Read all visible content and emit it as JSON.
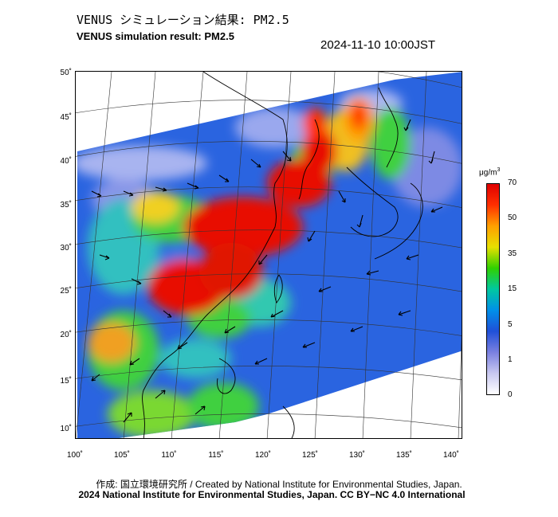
{
  "title_jp": "VENUS シミュレーション結果: PM2.5",
  "title_en": "VENUS simulation result: PM2.5",
  "datetime": "2024-11-10 10:00JST",
  "lat_ticks": [
    "50˚",
    "45˚",
    "40˚",
    "35˚",
    "30˚",
    "25˚",
    "20˚",
    "15˚",
    "10˚"
  ],
  "lon_ticks": [
    "100˚",
    "105˚",
    "110˚",
    "115˚",
    "120˚",
    "125˚",
    "130˚",
    "135˚",
    "140˚"
  ],
  "colorbar": {
    "unit": "μg/m",
    "unit_sup": "3",
    "labels": [
      "70",
      "50",
      "35",
      "15",
      "5",
      "1",
      "0"
    ],
    "colors": [
      "#e00000",
      "#ff3000",
      "#ffa000",
      "#e8e000",
      "#30d000",
      "#00c8a0",
      "#0090e8",
      "#2050d8",
      "#7a80e0",
      "#c8c8f0",
      "#ffffff"
    ]
  },
  "credit_line1": "作成: 国立環境研究所 / Created by National Institute for Environmental Studies, Japan.",
  "credit_line2": "2024 National Institute for Environmental Studies, Japan. CC BY−NC 4.0 International"
}
